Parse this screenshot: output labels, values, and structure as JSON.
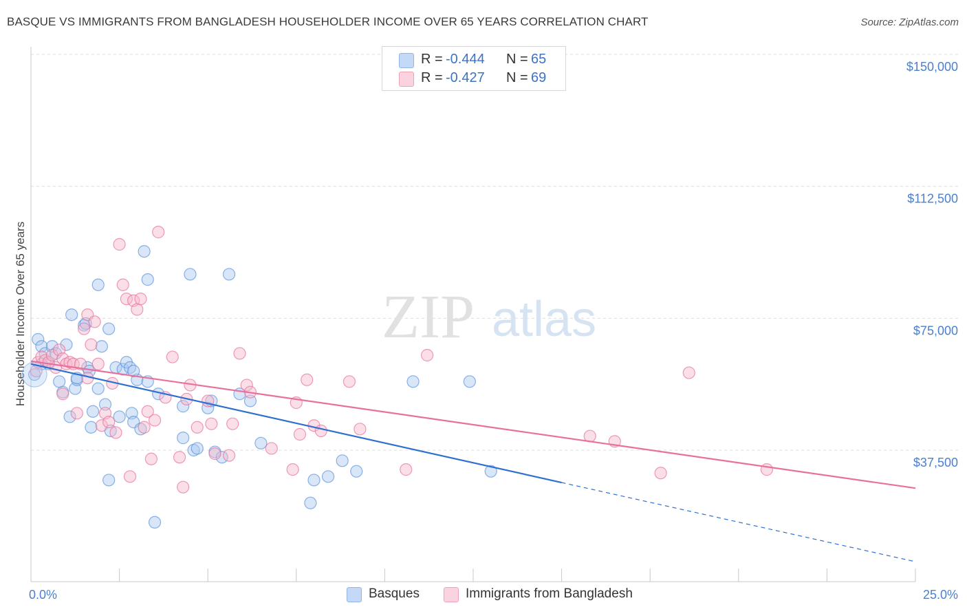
{
  "header": {
    "title": "BASQUE VS IMMIGRANTS FROM BANGLADESH HOUSEHOLDER INCOME OVER 65 YEARS CORRELATION CHART",
    "source": "Source: ZipAtlas.com"
  },
  "watermark": {
    "zip": "ZIP",
    "atlas": "atlas"
  },
  "legend": {
    "rows": [
      {
        "r_label": "R =",
        "r_value": "-0.444",
        "n_label": "N =",
        "n_value": "65",
        "color": "#a9c8f0"
      },
      {
        "r_label": "R =",
        "r_value": "-0.427",
        "n_label": "N =",
        "n_value": "69",
        "color": "#f6b8cb"
      }
    ]
  },
  "bottom_legend": [
    {
      "label": "Basques",
      "color": "#a9c8f0"
    },
    {
      "label": "Immigrants from Bangladesh",
      "color": "#f6b8cb"
    }
  ],
  "chart_data": {
    "type": "scatter",
    "title": "BASQUE VS IMMIGRANTS FROM BANGLADESH HOUSEHOLDER INCOME OVER 65 YEARS CORRELATION CHART",
    "xlabel": "",
    "ylabel": "Householder Income Over 65 years",
    "xlim": [
      0,
      25
    ],
    "ylim": [
      0,
      150000
    ],
    "x_tick_labels": [
      {
        "value": 0,
        "label": "0.0%"
      },
      {
        "value": 25,
        "label": "25.0%"
      }
    ],
    "y_tick_labels": [
      {
        "value": 37500,
        "label": "$37,500"
      },
      {
        "value": 75000,
        "label": "$75,000"
      },
      {
        "value": 112500,
        "label": "$112,500"
      },
      {
        "value": 150000,
        "label": "$150,000"
      }
    ],
    "grid": true,
    "legend_position": "top-center",
    "series": [
      {
        "name": "Basques",
        "color": "#5b93dc",
        "fill": "#a9c8f0",
        "points": [
          [
            0.1,
            59000
          ],
          [
            0.2,
            69000
          ],
          [
            0.3,
            67000
          ],
          [
            0.4,
            65000
          ],
          [
            0.5,
            62000
          ],
          [
            0.6,
            67000
          ],
          [
            0.8,
            57000
          ],
          [
            0.9,
            54000
          ],
          [
            1.0,
            67500
          ],
          [
            1.1,
            47000
          ],
          [
            1.15,
            76000
          ],
          [
            1.25,
            55000
          ],
          [
            1.3,
            57500
          ],
          [
            1.5,
            73000
          ],
          [
            1.55,
            73500
          ],
          [
            1.6,
            61000
          ],
          [
            1.65,
            60000
          ],
          [
            1.7,
            44000
          ],
          [
            1.75,
            48500
          ],
          [
            1.9,
            55000
          ],
          [
            1.9,
            84500
          ],
          [
            2.0,
            67000
          ],
          [
            2.1,
            50500
          ],
          [
            2.2,
            29000
          ],
          [
            2.2,
            72000
          ],
          [
            2.25,
            43000
          ],
          [
            2.4,
            61000
          ],
          [
            2.5,
            47000
          ],
          [
            2.6,
            60500
          ],
          [
            2.7,
            62500
          ],
          [
            2.8,
            61000
          ],
          [
            2.85,
            48000
          ],
          [
            2.9,
            45500
          ],
          [
            3.0,
            57500
          ],
          [
            3.1,
            43500
          ],
          [
            3.2,
            94000
          ],
          [
            3.3,
            86000
          ],
          [
            3.5,
            17000
          ],
          [
            3.6,
            53500
          ],
          [
            4.3,
            50000
          ],
          [
            4.5,
            87500
          ],
          [
            4.6,
            37500
          ],
          [
            4.7,
            38000
          ],
          [
            5.0,
            49500
          ],
          [
            5.1,
            51500
          ],
          [
            5.2,
            37000
          ],
          [
            5.4,
            35500
          ],
          [
            5.6,
            87500
          ],
          [
            5.9,
            53500
          ],
          [
            6.2,
            51500
          ],
          [
            6.5,
            39500
          ],
          [
            7.9,
            22500
          ],
          [
            8.0,
            29000
          ],
          [
            8.4,
            30000
          ],
          [
            8.8,
            34500
          ],
          [
            9.2,
            31500
          ],
          [
            10.8,
            57000
          ],
          [
            12.4,
            57000
          ],
          [
            13.0,
            31500
          ],
          [
            0.3,
            62000
          ],
          [
            0.7,
            65000
          ],
          [
            1.3,
            58000
          ],
          [
            2.9,
            60000
          ],
          [
            3.3,
            57000
          ],
          [
            4.3,
            41000
          ]
        ]
      },
      {
        "name": "Immigrants from Bangladesh",
        "color": "#e8709a",
        "fill": "#f6b8cb",
        "points": [
          [
            0.15,
            60000
          ],
          [
            0.2,
            62500
          ],
          [
            0.3,
            64000
          ],
          [
            0.4,
            63000
          ],
          [
            0.5,
            62500
          ],
          [
            0.6,
            64500
          ],
          [
            0.7,
            61000
          ],
          [
            0.8,
            66000
          ],
          [
            0.9,
            63500
          ],
          [
            1.0,
            62000
          ],
          [
            1.1,
            62500
          ],
          [
            1.2,
            62000
          ],
          [
            1.3,
            48000
          ],
          [
            1.4,
            62000
          ],
          [
            1.5,
            72000
          ],
          [
            1.6,
            76000
          ],
          [
            1.7,
            67500
          ],
          [
            1.8,
            74000
          ],
          [
            1.9,
            62000
          ],
          [
            2.0,
            44500
          ],
          [
            2.1,
            48000
          ],
          [
            2.2,
            45500
          ],
          [
            2.3,
            56500
          ],
          [
            2.4,
            42500
          ],
          [
            2.5,
            96000
          ],
          [
            2.6,
            84500
          ],
          [
            2.7,
            80500
          ],
          [
            2.8,
            30000
          ],
          [
            2.9,
            80000
          ],
          [
            3.0,
            77500
          ],
          [
            3.1,
            80500
          ],
          [
            3.2,
            44000
          ],
          [
            3.3,
            48500
          ],
          [
            3.4,
            35000
          ],
          [
            3.5,
            46000
          ],
          [
            3.6,
            99500
          ],
          [
            3.8,
            52500
          ],
          [
            4.0,
            64000
          ],
          [
            4.2,
            35500
          ],
          [
            4.3,
            27000
          ],
          [
            4.4,
            52000
          ],
          [
            4.5,
            56000
          ],
          [
            4.7,
            44000
          ],
          [
            5.0,
            51500
          ],
          [
            5.1,
            45000
          ],
          [
            5.2,
            36500
          ],
          [
            5.6,
            36000
          ],
          [
            5.7,
            45000
          ],
          [
            5.9,
            65000
          ],
          [
            6.1,
            56000
          ],
          [
            6.2,
            54000
          ],
          [
            6.8,
            38000
          ],
          [
            7.4,
            32000
          ],
          [
            7.5,
            51000
          ],
          [
            7.6,
            42000
          ],
          [
            7.8,
            57500
          ],
          [
            8.0,
            44500
          ],
          [
            8.2,
            43000
          ],
          [
            9.0,
            57000
          ],
          [
            9.3,
            43500
          ],
          [
            10.6,
            32000
          ],
          [
            11.2,
            64500
          ],
          [
            15.8,
            41500
          ],
          [
            16.5,
            40000
          ],
          [
            17.8,
            31000
          ],
          [
            18.6,
            59500
          ],
          [
            20.8,
            32000
          ],
          [
            0.9,
            53500
          ],
          [
            1.6,
            58000
          ]
        ]
      }
    ],
    "trend_lines": [
      {
        "series": "Basques",
        "x": [
          0,
          15
        ],
        "y": [
          62000,
          28300
        ],
        "dashed_extension_to": [
          25,
          5800
        ]
      },
      {
        "series": "Immigrants from Bangladesh",
        "x": [
          0,
          25
        ],
        "y": [
          62800,
          26700
        ]
      }
    ]
  }
}
